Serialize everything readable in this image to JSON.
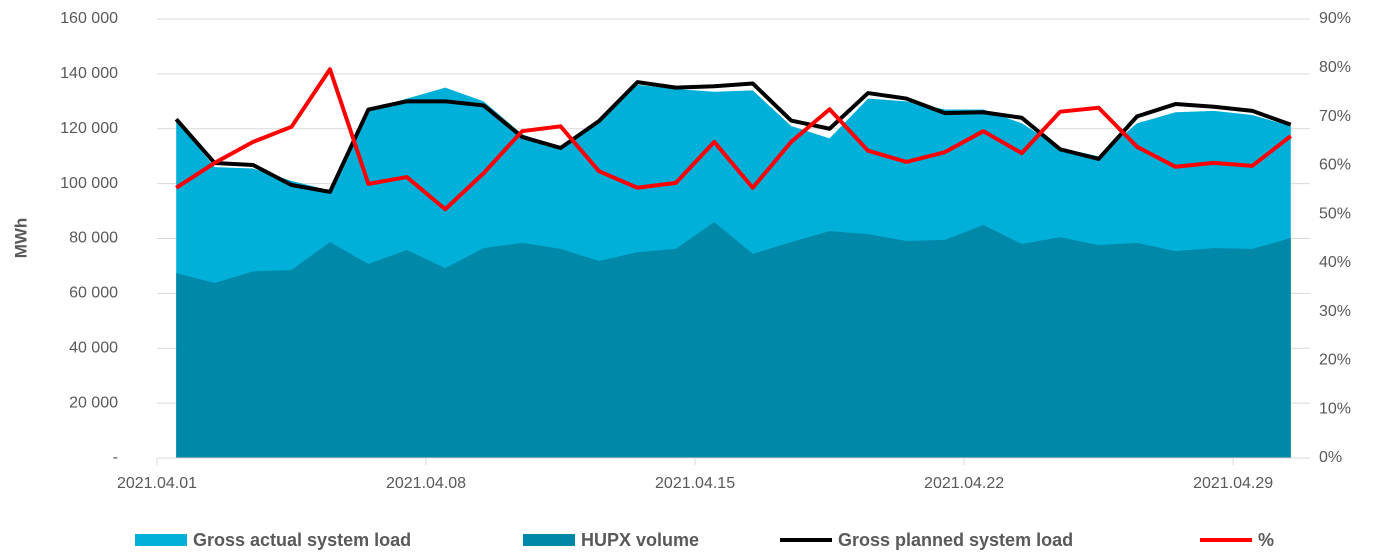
{
  "chart_data": {
    "type": "area-line",
    "y_label": "MWh",
    "categories": [
      "2021.04.01",
      null,
      null,
      null,
      null,
      null,
      null,
      "2021.04.08",
      null,
      null,
      null,
      null,
      null,
      null,
      "2021.04.15",
      null,
      null,
      null,
      null,
      null,
      null,
      "2021.04.22",
      null,
      null,
      null,
      null,
      null,
      null,
      "2021.04.29",
      null
    ],
    "ylim": [
      0,
      160000
    ],
    "yticks": [
      {
        "value": 0,
        "label": "-"
      },
      {
        "value": 20000,
        "label": "20 000"
      },
      {
        "value": 40000,
        "label": "40 000"
      },
      {
        "value": 60000,
        "label": "60 000"
      },
      {
        "value": 80000,
        "label": "80 000"
      },
      {
        "value": 100000,
        "label": "100 000"
      },
      {
        "value": 120000,
        "label": "120 000"
      },
      {
        "value": 140000,
        "label": "140 000"
      },
      {
        "value": 160000,
        "label": "160 000"
      }
    ],
    "y2lim": [
      0,
      90
    ],
    "y2ticks": [
      {
        "value": 0,
        "label": "0%"
      },
      {
        "value": 10,
        "label": "10%"
      },
      {
        "value": 20,
        "label": "20%"
      },
      {
        "value": 30,
        "label": "30%"
      },
      {
        "value": 40,
        "label": "40%"
      },
      {
        "value": 50,
        "label": "50%"
      },
      {
        "value": 60,
        "label": "60%"
      },
      {
        "value": 70,
        "label": "70%"
      },
      {
        "value": 80,
        "label": "80%"
      },
      {
        "value": 90,
        "label": "90%"
      }
    ],
    "grid": true,
    "legend": "bottom",
    "series": [
      {
        "name": "Gross actual system load",
        "kind": "area",
        "color": "#00b0d8",
        "values": [
          123000,
          106000,
          105500,
          101000,
          97500,
          127000,
          131000,
          135000,
          130000,
          118000,
          113000,
          123000,
          136000,
          134500,
          133500,
          134000,
          121000,
          116500,
          131000,
          130000,
          127000,
          127000,
          122000,
          113000,
          110000,
          122000,
          126000,
          126500,
          125000,
          121000
        ]
      },
      {
        "name": "HUPX volume",
        "kind": "area",
        "color": "#0088a8",
        "values": [
          67400,
          63800,
          68000,
          68500,
          78700,
          70700,
          75800,
          69200,
          76500,
          78400,
          76200,
          71800,
          75000,
          76200,
          86000,
          74400,
          78700,
          82700,
          81600,
          79100,
          79500,
          84900,
          78000,
          80500,
          77600,
          78400,
          75400,
          76500,
          76200,
          80200
        ]
      },
      {
        "name": "Gross planned system load",
        "kind": "line",
        "color": "#000000",
        "values": [
          123500,
          107500,
          106800,
          99500,
          97000,
          127000,
          130000,
          130000,
          128500,
          117000,
          113000,
          122800,
          137000,
          135000,
          135500,
          136500,
          123000,
          120000,
          133000,
          131000,
          125700,
          126000,
          124000,
          112500,
          109000,
          124500,
          129000,
          128000,
          126500,
          121500
        ]
      },
      {
        "name": "%",
        "kind": "line",
        "axis": "y2",
        "color": "#ff0000",
        "values": [
          55.4,
          60.5,
          64.8,
          67.9,
          79.7,
          56.2,
          57.6,
          51,
          58.4,
          67,
          68,
          58.8,
          55.4,
          56.4,
          64.8,
          55.4,
          64.8,
          71.5,
          63,
          60.7,
          62.7,
          67,
          62.5,
          71,
          71.8,
          63.8,
          59.7,
          60.5,
          59.9,
          66
        ]
      }
    ]
  }
}
